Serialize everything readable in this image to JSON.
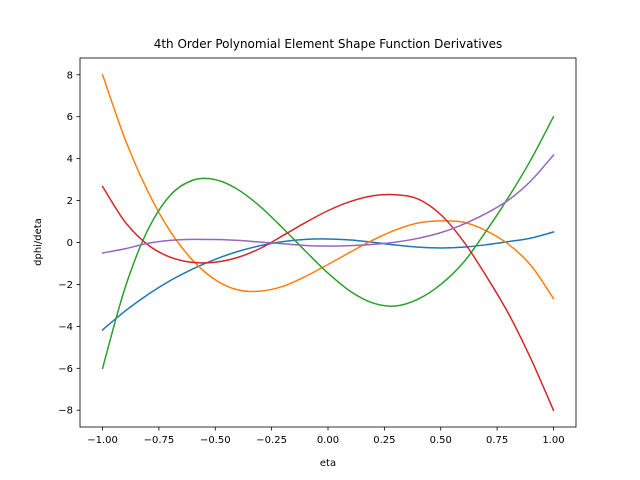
{
  "chart_data": {
    "type": "line",
    "title": "4th Order Polynomial Element Shape Function Derivatives",
    "xlabel": "eta",
    "ylabel": "dphi/deta",
    "xlim": [
      -1.1,
      1.1
    ],
    "ylim": [
      -8.8,
      8.8
    ],
    "xticks": [
      -1.0,
      -0.75,
      -0.5,
      -0.25,
      0.0,
      0.25,
      0.5,
      0.75,
      1.0
    ],
    "xtick_labels": [
      "−1.00",
      "−0.75",
      "−0.50",
      "−0.25",
      "0.00",
      "0.25",
      "0.50",
      "0.75",
      "1.00"
    ],
    "yticks": [
      -8,
      -6,
      -4,
      -2,
      0,
      2,
      4,
      6,
      8
    ],
    "ytick_labels": [
      "−8",
      "−6",
      "−4",
      "−2",
      "0",
      "2",
      "4",
      "6",
      "8"
    ],
    "grid": false,
    "x": [
      -1.0,
      -0.9,
      -0.8,
      -0.7,
      -0.6,
      -0.5,
      -0.4,
      -0.3,
      -0.2,
      -0.1,
      0.0,
      0.1,
      0.2,
      0.3,
      0.4,
      0.5,
      0.6,
      0.7,
      0.8,
      0.9,
      1.0
    ],
    "series": [
      {
        "color": "#1f77b4",
        "values": [
          -4.17,
          -3.27,
          -2.49,
          -1.82,
          -1.26,
          -0.8,
          -0.43,
          -0.15,
          0.04,
          0.15,
          0.17,
          0.12,
          0.01,
          -0.12,
          -0.22,
          -0.26,
          -0.22,
          -0.11,
          0.04,
          0.21,
          0.5
        ]
      },
      {
        "color": "#ff7f0e",
        "values": [
          8.0,
          4.93,
          2.46,
          0.54,
          -0.85,
          -1.78,
          -2.26,
          -2.32,
          -2.09,
          -1.62,
          -1.05,
          -0.45,
          0.12,
          0.6,
          0.93,
          1.03,
          0.97,
          0.57,
          -0.08,
          -1.09,
          -2.67
        ]
      },
      {
        "color": "#2ca02c",
        "values": [
          -6.0,
          -2.16,
          0.58,
          2.25,
          2.97,
          3.0,
          2.53,
          1.71,
          0.68,
          -0.41,
          -1.46,
          -2.34,
          -2.89,
          -3.03,
          -2.7,
          -2.0,
          -0.96,
          0.52,
          2.15,
          3.95,
          6.0
        ]
      },
      {
        "color": "#d62728",
        "values": [
          2.67,
          0.98,
          -0.1,
          -0.7,
          -0.95,
          -0.94,
          -0.71,
          -0.28,
          0.33,
          0.95,
          1.52,
          1.96,
          2.23,
          2.28,
          2.07,
          1.33,
          0.07,
          -1.57,
          -3.38,
          -5.55,
          -8.0
        ]
      },
      {
        "color": "#9467bd",
        "values": [
          -0.5,
          -0.3,
          -0.04,
          0.1,
          0.15,
          0.14,
          0.1,
          0.02,
          -0.06,
          -0.14,
          -0.17,
          -0.15,
          -0.09,
          0.02,
          0.2,
          0.47,
          0.87,
          1.38,
          2.02,
          2.94,
          4.17
        ]
      }
    ]
  }
}
